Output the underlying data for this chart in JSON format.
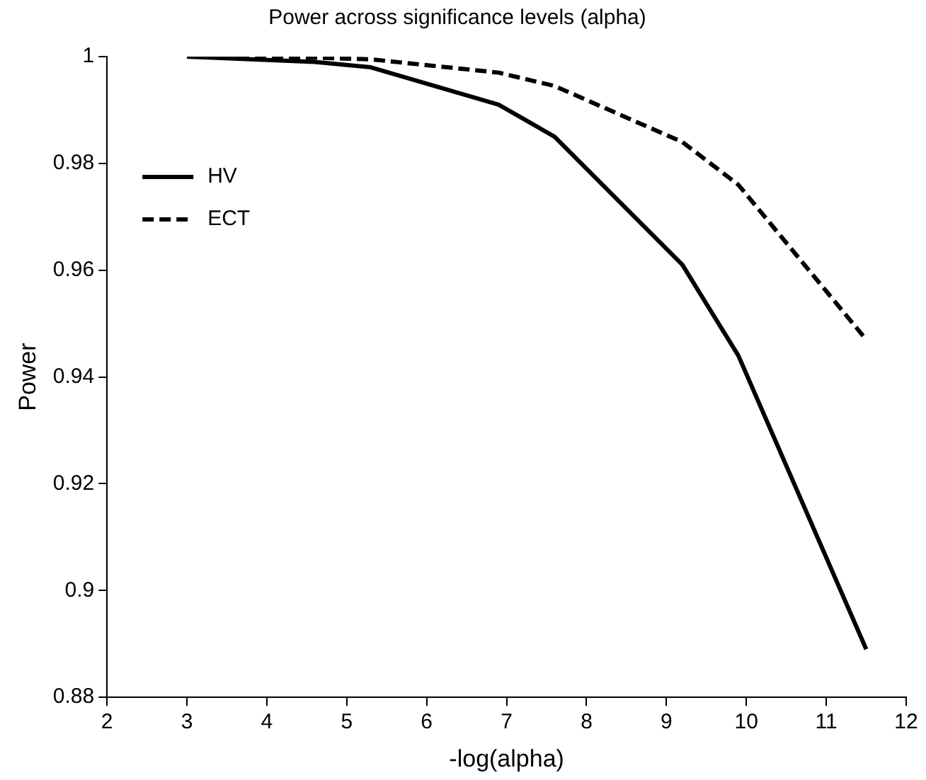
{
  "chart_data": {
    "type": "line",
    "title": "Power across significance levels (alpha)",
    "xlabel": "-log(alpha)",
    "ylabel": "Power",
    "x": [
      3,
      4.6,
      5.3,
      6.9,
      7.6,
      9.2,
      9.9,
      11.5
    ],
    "series": [
      {
        "name": "HV",
        "color": "#000000",
        "line_style": "solid",
        "values": [
          1,
          0.999,
          0.998,
          0.991,
          0.985,
          0.961,
          0.944,
          0.889
        ]
      },
      {
        "name": "ECT",
        "color": "#000000",
        "line_style": "dashed",
        "values": [
          1,
          0.9998,
          0.9995,
          0.997,
          0.9945,
          0.984,
          0.976,
          0.947
        ]
      }
    ],
    "xlim": [
      2,
      12
    ],
    "xticks": [
      2,
      3,
      4,
      5,
      6,
      7,
      8,
      9,
      10,
      11,
      12
    ],
    "ylim": [
      0.88,
      1
    ],
    "yticks": [
      0.88,
      0.9,
      0.92,
      0.94,
      0.96,
      0.98,
      1
    ],
    "grid": false,
    "legend": "top left",
    "marker": "none"
  }
}
